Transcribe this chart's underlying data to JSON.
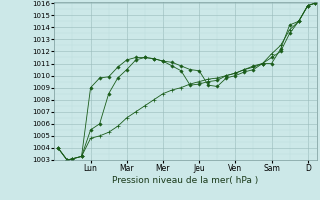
{
  "xlabel": "Pression niveau de la mer( hPa )",
  "bg_color": "#cce8e8",
  "grid_color_major": "#99bbbb",
  "grid_color_minor": "#bbdddd",
  "line_color": "#1a5c1a",
  "day_labels": [
    "Lun",
    "Mar",
    "Mer",
    "Jeu",
    "Ven",
    "Sam",
    "D"
  ],
  "day_positions": [
    2,
    4,
    6,
    8,
    10,
    12,
    14
  ],
  "xlim": [
    0,
    14.5
  ],
  "ylim": [
    1003,
    1016
  ],
  "ytick_fontsize": 5,
  "xtick_fontsize": 5.5,
  "xlabel_fontsize": 6.5,
  "line1_x": [
    0.2,
    0.7,
    1.0,
    1.5,
    2.0,
    2.5,
    3.0,
    3.5,
    4.0,
    4.5,
    5.0,
    5.5,
    6.0,
    6.5,
    7.0,
    7.5,
    8.0,
    8.5,
    9.0,
    9.5,
    10.0,
    10.5,
    11.0,
    11.5,
    12.0,
    12.5,
    13.0,
    13.5,
    14.0,
    14.4
  ],
  "line1_y": [
    1004.0,
    1003.0,
    1003.1,
    1003.3,
    1009.0,
    1009.8,
    1009.9,
    1010.7,
    1011.3,
    1011.5,
    1011.5,
    1011.4,
    1011.2,
    1011.1,
    1010.8,
    1010.5,
    1010.4,
    1009.2,
    1009.1,
    1009.8,
    1010.0,
    1010.3,
    1010.5,
    1011.0,
    1011.0,
    1012.2,
    1014.2,
    1014.5,
    1015.8,
    1016.0
  ],
  "line2_x": [
    0.2,
    0.7,
    1.0,
    1.5,
    2.0,
    2.5,
    3.0,
    3.5,
    4.0,
    4.5,
    5.0,
    5.5,
    6.0,
    6.5,
    7.0,
    7.5,
    8.0,
    8.5,
    9.0,
    9.5,
    10.0,
    10.5,
    11.0,
    11.5,
    12.0,
    12.5,
    13.0,
    13.5,
    14.0,
    14.4
  ],
  "line2_y": [
    1004.0,
    1003.0,
    1003.1,
    1003.3,
    1004.8,
    1005.0,
    1005.3,
    1005.8,
    1006.5,
    1007.0,
    1007.5,
    1008.0,
    1008.5,
    1008.8,
    1009.0,
    1009.3,
    1009.5,
    1009.7,
    1009.8,
    1010.0,
    1010.2,
    1010.5,
    1010.7,
    1011.0,
    1011.8,
    1012.5,
    1013.8,
    1014.5,
    1015.8,
    1016.0
  ],
  "line3_x": [
    0.2,
    0.7,
    1.0,
    1.5,
    2.0,
    2.5,
    3.0,
    3.5,
    4.0,
    4.5,
    5.0,
    5.5,
    6.0,
    6.5,
    7.0,
    7.5,
    8.0,
    8.5,
    9.0,
    9.5,
    10.0,
    10.5,
    11.0,
    11.5,
    12.0,
    12.5,
    13.0,
    13.5,
    14.0,
    14.4
  ],
  "line3_y": [
    1004.0,
    1003.0,
    1003.1,
    1003.3,
    1005.5,
    1006.0,
    1008.5,
    1009.8,
    1010.5,
    1011.3,
    1011.5,
    1011.4,
    1011.2,
    1010.8,
    1010.4,
    1009.2,
    1009.3,
    1009.5,
    1009.6,
    1010.0,
    1010.2,
    1010.5,
    1010.8,
    1011.0,
    1011.5,
    1012.0,
    1013.5,
    1014.5,
    1015.8,
    1016.0
  ]
}
